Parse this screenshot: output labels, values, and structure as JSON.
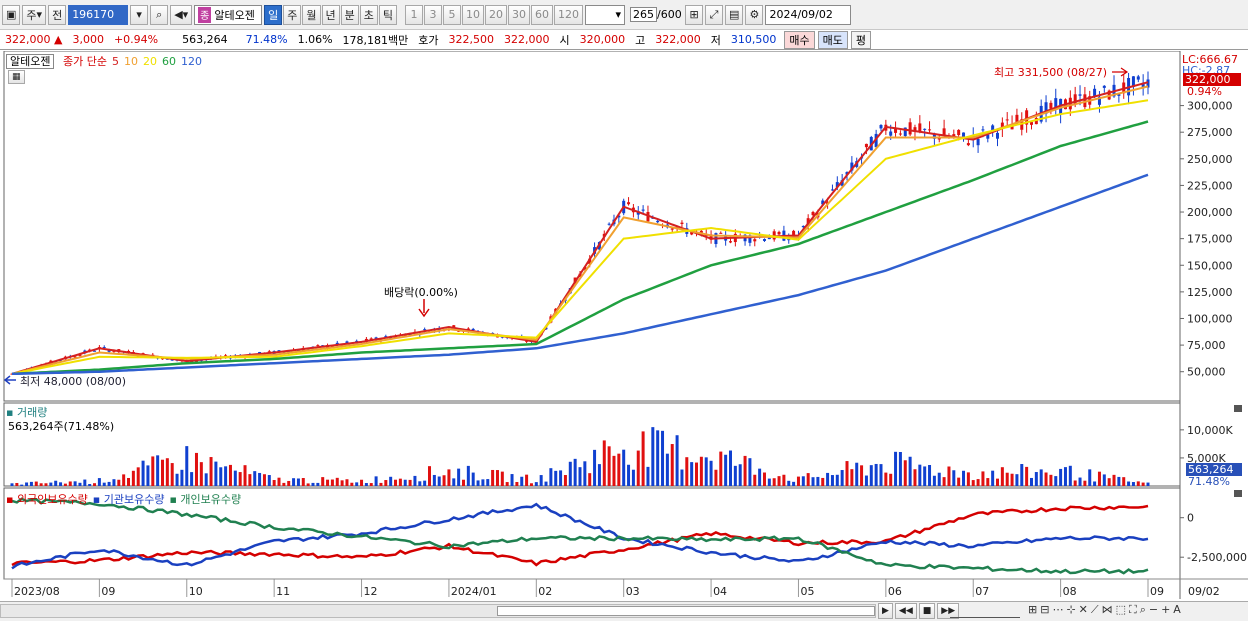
{
  "toolbar": {
    "type_select": "주",
    "prev_label": "전",
    "code": "196170",
    "badge": "종",
    "name": "알테오젠",
    "periods": [
      "일",
      "주",
      "월",
      "년",
      "분",
      "초",
      "틱"
    ],
    "selected_period": "일",
    "intervals": [
      "1",
      "3",
      "5",
      "10",
      "20",
      "30",
      "60",
      "120"
    ],
    "count": "265",
    "count_total": "/600",
    "date": "2024/09/02"
  },
  "quote": {
    "price": "322,000",
    "change": "3,000",
    "change_pct": "+0.94%",
    "volume": "563,264",
    "vol_ratio": "71.48%",
    "turnover": "1.06%",
    "amount": "178,181백만",
    "ask_label": "호가",
    "ask": "322,500",
    "bid": "322,000",
    "open_label": "시",
    "open": "320,000",
    "high_label": "고",
    "high": "322,000",
    "low_label": "저",
    "low": "310,500",
    "buy_label": "매수",
    "sell_label": "매도",
    "avg_label": "평"
  },
  "price_panel": {
    "stock_tab": "알테오젠",
    "ma_title": "종가 단순",
    "ma_periods": [
      "5",
      "10",
      "20",
      "60",
      "120"
    ],
    "ma_colors": [
      "#d42020",
      "#f0a030",
      "#f0e000",
      "#20a040",
      "#3060d0"
    ],
    "lc_label": "LC:666.67",
    "hc_label": "HC:-2.87",
    "current_price_tag": "322,000",
    "current_pct_tag": "0.94%",
    "y_labels": [
      "300,000",
      "275,000",
      "250,000",
      "225,000",
      "200,000",
      "175,000",
      "150,000",
      "125,000",
      "100,000",
      "75,000",
      "50,000"
    ],
    "high_annotation": "최고 331,500 (08/27)",
    "low_annotation": "최저 48,000 (08/00)",
    "dividend_annotation": "배당락(0.00%)"
  },
  "volume_panel": {
    "title": "거래량",
    "value": "563,264주(71.48%)",
    "y_labels": [
      "10,000K",
      "5,000K"
    ],
    "current_tag": "563,264",
    "current_pct": "71.48%"
  },
  "holding_panel": {
    "series": [
      "외국인보유수량",
      "기관보유수량",
      "개인보유수량"
    ],
    "series_colors": [
      "#d40000",
      "#1a40c0",
      "#208050"
    ],
    "y_labels": [
      "0",
      "-2,500,000"
    ]
  },
  "x_labels": [
    "2023/08",
    "09",
    "10",
    "11",
    "12",
    "2024/01",
    "02",
    "03",
    "04",
    "05",
    "06",
    "07",
    "08",
    "09"
  ],
  "x_right_label": "09/02",
  "chart_data": [
    {
      "type": "line",
      "title": "알테오젠",
      "ylim": [
        30000,
        340000
      ],
      "x": [
        "2023/08",
        "09",
        "10",
        "11",
        "12",
        "2024/01",
        "02",
        "03",
        "04",
        "05",
        "06",
        "07",
        "08",
        "09"
      ],
      "series": [
        {
          "name": "5",
          "values": [
            48000,
            72000,
            60000,
            68000,
            78000,
            92000,
            78000,
            205000,
            175000,
            178000,
            280000,
            268000,
            300000,
            322000
          ]
        },
        {
          "name": "10",
          "values": [
            48000,
            68000,
            62000,
            66000,
            76000,
            90000,
            80000,
            195000,
            178000,
            176000,
            270000,
            270000,
            298000,
            318000
          ]
        },
        {
          "name": "20",
          "values": [
            48000,
            64000,
            63000,
            64000,
            74000,
            86000,
            82000,
            175000,
            185000,
            174000,
            250000,
            272000,
            292000,
            305000
          ]
        },
        {
          "name": "60",
          "values": [
            48000,
            52000,
            58000,
            62000,
            68000,
            72000,
            76000,
            118000,
            150000,
            170000,
            200000,
            230000,
            262000,
            285000
          ]
        },
        {
          "name": "120",
          "values": [
            48000,
            50000,
            54000,
            58000,
            62000,
            66000,
            72000,
            86000,
            104000,
            122000,
            145000,
            175000,
            205000,
            235000
          ]
        }
      ]
    },
    {
      "type": "bar",
      "title": "거래량",
      "ylim": [
        0,
        13000
      ],
      "x": [
        "2023/08",
        "09",
        "10",
        "11",
        "12",
        "2024/01",
        "02",
        "03",
        "04",
        "05",
        "06",
        "07",
        "08",
        "09"
      ],
      "series": [
        {
          "name": "거래량",
          "values": [
            500,
            1200,
            6500,
            1500,
            1200,
            3500,
            1500,
            9500,
            7500,
            1500,
            5500,
            3000,
            3500,
            563
          ]
        }
      ]
    },
    {
      "type": "line",
      "title": "",
      "ylim": [
        -3500000,
        1500000
      ],
      "x": [
        "2023/08",
        "09",
        "10",
        "11",
        "12",
        "2024/01",
        "02",
        "03",
        "04",
        "05",
        "06",
        "07",
        "08",
        "09"
      ],
      "series": [
        {
          "name": "외국인보유수량",
          "values": [
            -2900000,
            -2700000,
            -2200000,
            -2300000,
            -2500000,
            -1800000,
            -2900000,
            -2000000,
            -1000000,
            -1600000,
            -1500000,
            200000,
            600000,
            700000
          ]
        },
        {
          "name": "기관보유수량",
          "values": [
            -3100000,
            -2000000,
            -3000000,
            -1500000,
            -1000000,
            -100000,
            800000,
            -1300000,
            -2200000,
            -2800000,
            -1500000,
            -1800000,
            -1300000,
            -1300000
          ]
        },
        {
          "name": "개인보유수량",
          "values": [
            1100000,
            900000,
            200000,
            -600000,
            -1200000,
            -1800000,
            -1300000,
            -1300000,
            -1400000,
            -1300000,
            -3000000,
            -3200000,
            -3400000,
            -3400000
          ]
        }
      ]
    }
  ]
}
